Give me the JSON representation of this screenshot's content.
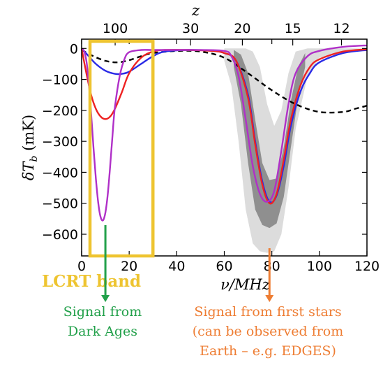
{
  "chart_data": {
    "type": "line",
    "xlabel": "ν/MHz",
    "ylabel": "δT_b (mK)",
    "top_axis_label": "z",
    "xlim": [
      0,
      120
    ],
    "ylim": [
      -670,
      30
    ],
    "x_ticks": [
      0,
      20,
      40,
      60,
      80,
      100,
      120
    ],
    "y_ticks": [
      0,
      -100,
      -200,
      -300,
      -400,
      -500,
      -600
    ],
    "top_ticks": [
      {
        "label": "100",
        "nu": 14.1
      },
      {
        "label": "30",
        "nu": 45.8
      },
      {
        "label": "20",
        "nu": 67.6
      },
      {
        "label": "15",
        "nu": 88.8
      },
      {
        "label": "12",
        "nu": 109.3
      }
    ],
    "series": [
      {
        "color": "#000000",
        "dash": true,
        "x": [
          0,
          5,
          10,
          15,
          20,
          25,
          30,
          40,
          50,
          60,
          70,
          80,
          90,
          100,
          110,
          115,
          120
        ],
        "y": [
          -5,
          -25,
          -40,
          -45,
          -38,
          -25,
          -15,
          -8,
          -10,
          -30,
          -80,
          -135,
          -180,
          -205,
          -205,
          -195,
          -185
        ]
      },
      {
        "color": "#2a2ae6",
        "x": [
          0,
          3,
          6,
          10,
          14,
          17,
          20,
          25,
          30,
          35,
          45,
          55,
          60,
          65,
          70,
          73,
          76,
          79,
          82,
          85,
          88,
          92,
          96,
          100,
          110,
          120
        ],
        "y": [
          0,
          -25,
          -50,
          -72,
          -82,
          -82,
          -75,
          -50,
          -25,
          -10,
          -5,
          -8,
          -15,
          -40,
          -150,
          -300,
          -430,
          -495,
          -475,
          -380,
          -250,
          -140,
          -80,
          -45,
          -15,
          -5
        ]
      },
      {
        "color": "#ee2222",
        "x": [
          0,
          2,
          4,
          6,
          8,
          10,
          12,
          14,
          17,
          20,
          25,
          30,
          35,
          45,
          55,
          60,
          65,
          70,
          73,
          76,
          79,
          82,
          85,
          88,
          92,
          96,
          100,
          110,
          120
        ],
        "y": [
          0,
          -80,
          -150,
          -195,
          -220,
          -228,
          -220,
          -195,
          -140,
          -80,
          -30,
          -10,
          -5,
          -5,
          -8,
          -15,
          -40,
          -160,
          -310,
          -440,
          -500,
          -470,
          -360,
          -230,
          -120,
          -60,
          -35,
          -10,
          -3
        ]
      },
      {
        "color": "#b030c8",
        "x": [
          0,
          1,
          2,
          3,
          4,
          5,
          6,
          7,
          8,
          9,
          10,
          11,
          12,
          13,
          14,
          16,
          18,
          20,
          25,
          30,
          40,
          50,
          60,
          63,
          66,
          69,
          72,
          75,
          78,
          81,
          84,
          87,
          90,
          95,
          100,
          110,
          120
        ],
        "y": [
          0,
          -8,
          -40,
          -110,
          -210,
          -320,
          -420,
          -500,
          -545,
          -555,
          -530,
          -470,
          -380,
          -280,
          -190,
          -90,
          -35,
          -12,
          -5,
          -5,
          -5,
          -5,
          -8,
          -25,
          -90,
          -230,
          -380,
          -470,
          -495,
          -460,
          -330,
          -180,
          -80,
          -25,
          -8,
          5,
          10
        ]
      }
    ],
    "bands": [
      {
        "color": "#dcdcdc",
        "x": [
          60,
          63,
          66,
          69,
          72,
          75,
          78,
          81,
          84,
          87,
          90,
          95,
          100,
          110,
          120
        ],
        "y_low": [
          -40,
          -120,
          -300,
          -520,
          -630,
          -655,
          -660,
          -655,
          -600,
          -450,
          -260,
          -90,
          -30,
          -10,
          -5
        ],
        "y_high": [
          0,
          0,
          0,
          0,
          -10,
          -60,
          -180,
          -250,
          -200,
          -80,
          -10,
          0,
          0,
          0,
          0
        ]
      },
      {
        "color": "#8f8f8f",
        "x": [
          64,
          67,
          70,
          73,
          76,
          79,
          82,
          85,
          88,
          91,
          94
        ],
        "y_low": [
          -60,
          -180,
          -370,
          -520,
          -570,
          -580,
          -565,
          -480,
          -320,
          -160,
          -60
        ],
        "y_high": [
          -5,
          -20,
          -80,
          -230,
          -370,
          -425,
          -420,
          -320,
          -170,
          -60,
          -15
        ]
      }
    ]
  },
  "annotations": {
    "band_label": "LCRT  band",
    "dark_ages": [
      "Signal from",
      "Dark Ages"
    ],
    "first_stars": [
      "Signal from first stars",
      "(can be observed from",
      "Earth – e.g. EDGES)"
    ]
  },
  "colors": {
    "band_box": "#eec430",
    "dark_ages": "#22a04a",
    "first_stars": "#ee7d33"
  }
}
